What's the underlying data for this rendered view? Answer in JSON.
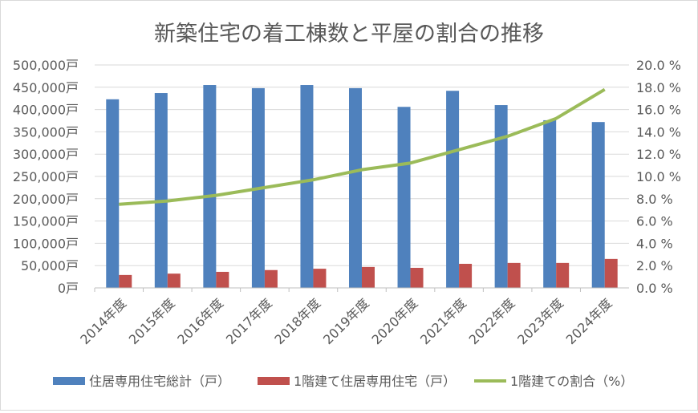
{
  "chart_data": {
    "type": "bar",
    "title": "新築住宅の着工棟数と平屋の割合の推移",
    "categories": [
      "2014年度",
      "2015年度",
      "2016年度",
      "2017年度",
      "2018年度",
      "2019年度",
      "2020年度",
      "2021年度",
      "2022年度",
      "2023年度",
      "2024年度"
    ],
    "series": [
      {
        "name": "住居専用住宅総計（戸）",
        "type": "bar",
        "axis": "left",
        "color": "#4f81bd",
        "values": [
          423000,
          437000,
          455000,
          448000,
          455000,
          448000,
          406000,
          442000,
          410000,
          376000,
          372000
        ]
      },
      {
        "name": "1階建て住居専用住宅（戸）",
        "type": "bar",
        "axis": "left",
        "color": "#c0504d",
        "values": [
          29000,
          32000,
          36000,
          40000,
          43000,
          47000,
          45000,
          54000,
          56000,
          56000,
          65000
        ]
      },
      {
        "name": "1階建ての割合（%）",
        "type": "line",
        "axis": "right",
        "color": "#9bbb59",
        "values": [
          7.5,
          7.8,
          8.3,
          9.0,
          9.7,
          10.6,
          11.2,
          12.4,
          13.6,
          15.2,
          17.8
        ]
      }
    ],
    "left_axis": {
      "ylim": [
        0,
        500000
      ],
      "ticks": [
        "0戸",
        "50,000戸",
        "100,000戸",
        "150,000戸",
        "200,000戸",
        "250,000戸",
        "300,000戸",
        "350,000戸",
        "400,000戸",
        "450,000戸",
        "500,000戸"
      ]
    },
    "right_axis": {
      "ylim": [
        0,
        20
      ],
      "ticks": [
        "0.0 %",
        "2.0 %",
        "4.0 %",
        "6.0 %",
        "8.0 %",
        "10.0 %",
        "12.0 %",
        "14.0 %",
        "16.0 %",
        "18.0 %",
        "20.0 %"
      ]
    },
    "grid": true,
    "legend_position": "bottom"
  }
}
